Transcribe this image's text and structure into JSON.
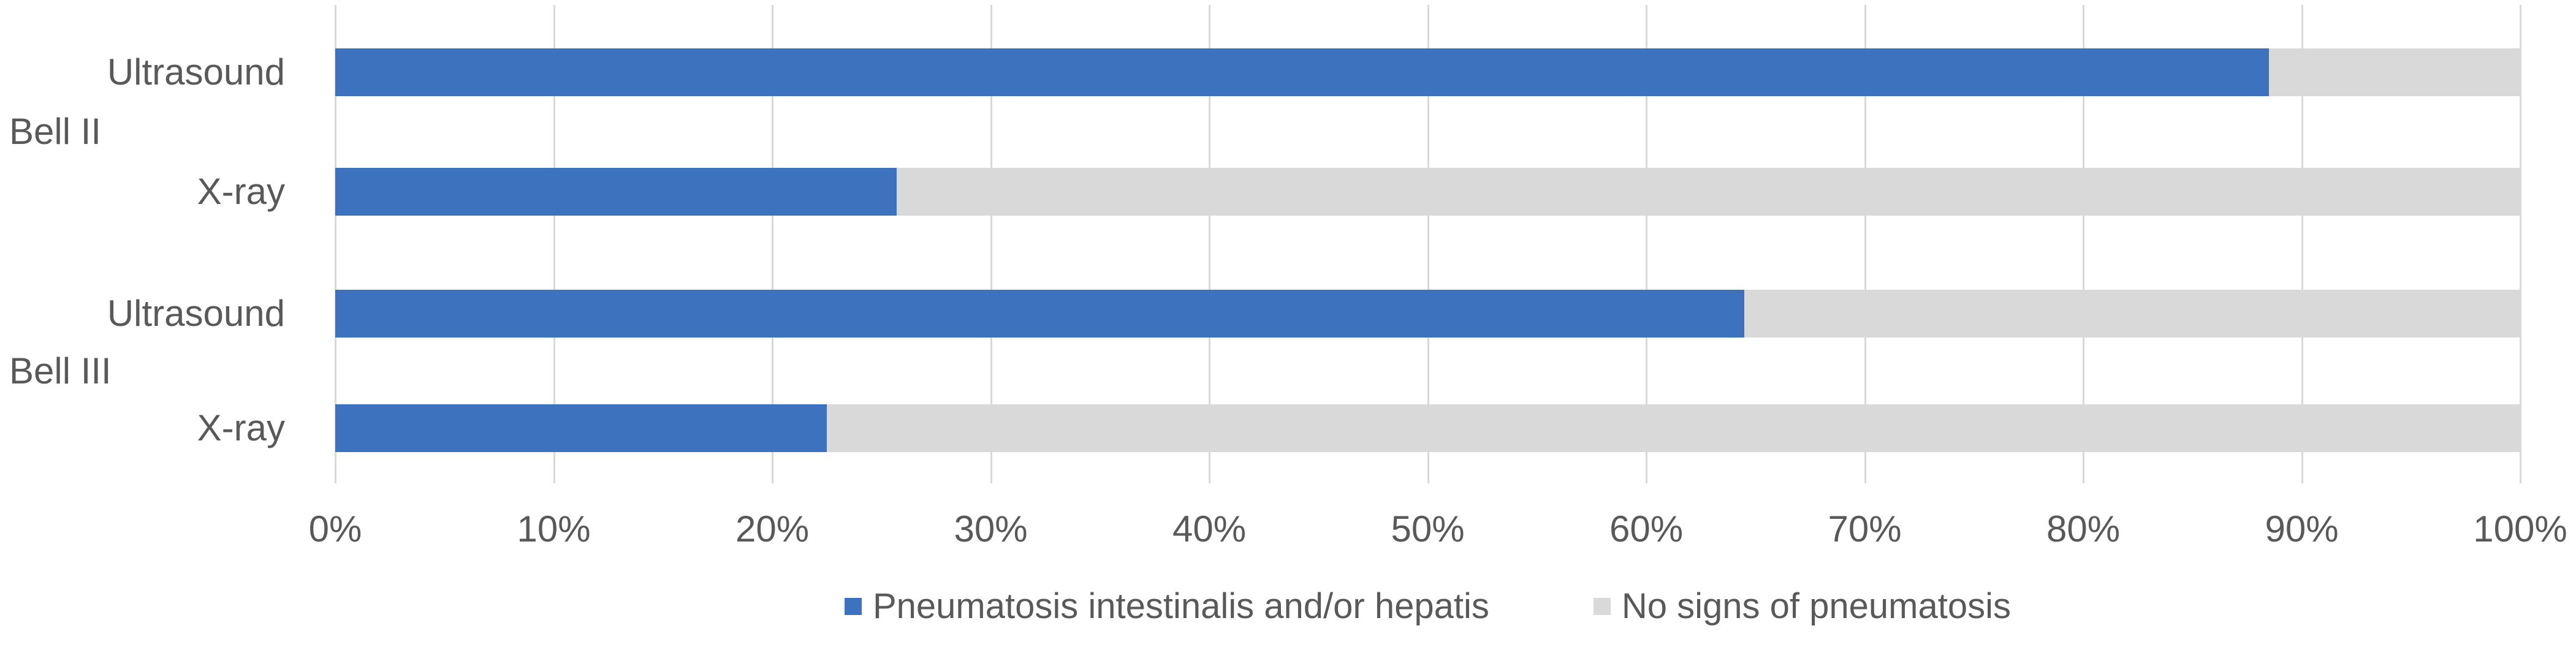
{
  "chart_data": {
    "type": "bar",
    "orientation": "horizontal",
    "stacked": true,
    "title": "",
    "xlabel": "",
    "ylabel": "",
    "unit": "%",
    "groups": [
      "Bell II",
      "Bell III"
    ],
    "rows": [
      {
        "group": "Bell II",
        "category": "Ultrasound",
        "pneumatosis_pct": 88.5,
        "no_signs_pct": 11.5
      },
      {
        "group": "Bell II",
        "category": "X-ray",
        "pneumatosis_pct": 25.7,
        "no_signs_pct": 74.3
      },
      {
        "group": "Bell III",
        "category": "Ultrasound",
        "pneumatosis_pct": 64.5,
        "no_signs_pct": 35.5
      },
      {
        "group": "Bell III",
        "category": "X-ray",
        "pneumatosis_pct": 22.5,
        "no_signs_pct": 77.5
      }
    ],
    "series": [
      {
        "name": "Pneumatosis intestinalis and/or hepatis",
        "color": "#3d72bf"
      },
      {
        "name": "No signs of pneumatosis",
        "color": "#d9d9d9"
      }
    ],
    "x_axis": {
      "min": 0,
      "max": 100,
      "step": 10,
      "tick_labels": [
        "0%",
        "10%",
        "20%",
        "30%",
        "40%",
        "50%",
        "60%",
        "70%",
        "80%",
        "90%",
        "100%"
      ]
    },
    "grid": true,
    "legend_position": "bottom",
    "style": {
      "grid_color": "#d9d9d9",
      "axis_text_color": "#595959",
      "background": "#ffffff"
    }
  }
}
